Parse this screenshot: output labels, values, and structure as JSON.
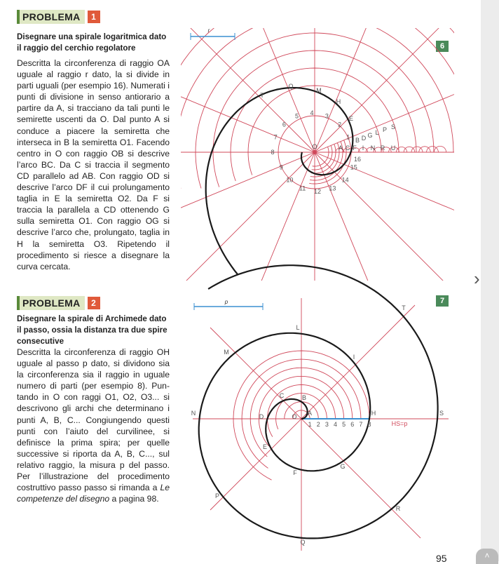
{
  "problem1": {
    "label": "PROBLEMA",
    "number": "1",
    "title": "Disegnare una spirale logaritmica dato il raggio del cerchio regolatore",
    "body": "Descritta la circonferenza di raggio OA uguale al raggio r dato, la si divide in parti uguali (per esempio 16). Numerati i punti di divisione in senso antiorario a partire da A, si tracciano da tali punti le semiret­te uscenti da O. Dal punto A si conduce a piacere la semiretta che interseca in B la semiretta O1. Facendo centro in O con raggio OB si descrive l’arco BC. Da C si traccia il segmento CD parallelo ad AB. Con raggio OD si descrive l’arco DF il cui prolungamento taglia in E la semi­retta O2. Da F si traccia la parallela a CD ottenendo G sulla semiretta O1. Con rag­gio OG si descrive l’arco che, prolungato, taglia in H la semiretta O3. Ripetendo il procedimento si riesce a disegnare la curva cercata.",
    "figure": "6",
    "scale_label": "r",
    "numbers": [
      "1",
      "2",
      "3",
      "4",
      "5",
      "6",
      "7",
      "8",
      "9",
      "10",
      "11",
      "12",
      "13",
      "14",
      "15",
      "16"
    ],
    "letters": [
      "O",
      "A",
      "C",
      "F",
      "I",
      "N",
      "R",
      "U",
      "B",
      "D",
      "G",
      "L",
      "P",
      "S",
      "E",
      "H",
      "M",
      "Q",
      "T"
    ]
  },
  "problem2": {
    "label": "PROBLEMA",
    "number": "2",
    "title": "Disegnare la spirale di Archimede dato il passo, ossia la distanza tra due spire con­secutive",
    "body": "Descritta la circonferenza di raggio OH uguale al passo p dato, si dividono sia la circonferenza sia il raggio in uguale numero di parti (per esempio 8). Pun­tando in O con raggi O1, O2, O3... si de­scrivono gli archi che determinano i pun­ti A, B, C... Congiungendo questi punti con l’aiuto del curvilinee, si definisce la prima spira; per quelle successive si riporta da A, B, C..., sul relativo raggio, la misura p del passo. Per l’illustrazio­ne del procedimento costruttivo passo passo si rimanda a ",
    "body_italic": "Le competenze del disegno",
    "body_end": " a pagina 98.",
    "figure": "7",
    "scale_label": "p",
    "formula": "HS=p",
    "numbers": [
      "1",
      "2",
      "3",
      "4",
      "5",
      "6",
      "7",
      "8"
    ],
    "points": [
      "A",
      "B",
      "C",
      "D",
      "E",
      "F",
      "G",
      "H",
      "I",
      "L",
      "M",
      "N",
      "P",
      "Q",
      "R",
      "S",
      "T",
      "O"
    ]
  },
  "page_number": "95",
  "nav": {
    "next_icon": "chevron-right-icon",
    "top_icon": "chevron-up-icon",
    "next": "›",
    "top": "˄"
  },
  "colors": {
    "construction": "#d0485a",
    "curve": "#1a1a1a",
    "scale": "#3a8fd0",
    "badge": "#4a8a5a",
    "number_badge": "#e05a3a"
  }
}
